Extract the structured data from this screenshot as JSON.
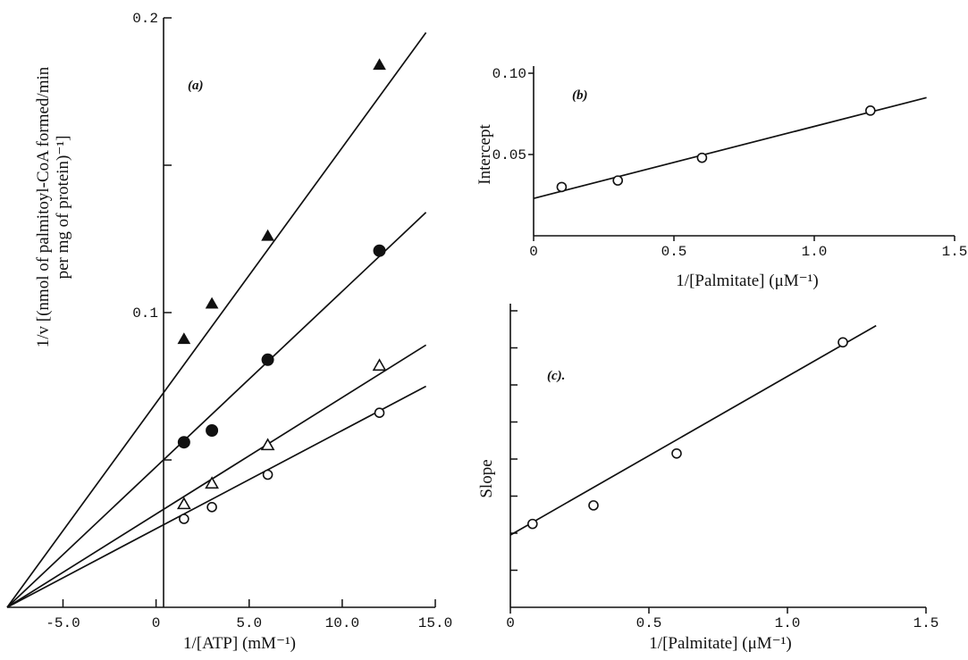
{
  "chart_data": [
    {
      "panel": "(a)",
      "type": "scatter",
      "xlabel": "1/[ATP] (mM⁻¹)",
      "ylabel_line1": "1/v [(nmol of palmitoyl-CoA formed/min",
      "ylabel_line2": "per mg of protein)⁻¹]",
      "xlim": [
        -8.0,
        15.0
      ],
      "ylim": [
        0.0,
        0.2
      ],
      "x_ticks": [
        -5.0,
        0,
        5.0,
        10.0,
        15.0
      ],
      "x_tick_labels": [
        "-5.0",
        "0",
        "5.0",
        "10.0",
        "15.0"
      ],
      "y_ticks": [
        0.05,
        0.1,
        0.15,
        0.2
      ],
      "y_tick_labels": [
        "",
        "0.1",
        "",
        "0.2"
      ],
      "y_axis_at_x": 0,
      "grid": false,
      "series": [
        {
          "marker": "filled-triangle",
          "x": [
            1.5,
            3.0,
            6.0,
            12.0
          ],
          "y": [
            0.091,
            0.103,
            0.126,
            0.184
          ],
          "fit": {
            "x": [
              -8.0,
              14.5
            ],
            "y": [
              0.0,
              0.195
            ]
          }
        },
        {
          "marker": "filled-circle",
          "x": [
            1.5,
            3.0,
            6.0,
            12.0
          ],
          "y": [
            0.056,
            0.06,
            0.084,
            0.121
          ],
          "fit": {
            "x": [
              -8.0,
              14.5
            ],
            "y": [
              0.0,
              0.134
            ]
          }
        },
        {
          "marker": "open-triangle",
          "x": [
            1.5,
            3.0,
            6.0,
            12.0
          ],
          "y": [
            0.035,
            0.042,
            0.055,
            0.082
          ],
          "fit": {
            "x": [
              -8.0,
              14.5
            ],
            "y": [
              0.0,
              0.089
            ]
          }
        },
        {
          "marker": "open-circle",
          "x": [
            1.5,
            3.0,
            6.0,
            12.0
          ],
          "y": [
            0.03,
            0.034,
            0.045,
            0.066
          ],
          "fit": {
            "x": [
              -8.0,
              14.5
            ],
            "y": [
              0.0,
              0.075
            ]
          }
        }
      ]
    },
    {
      "panel": "(b)",
      "type": "scatter",
      "xlabel": "1/[Palmitate] (μM⁻¹)",
      "ylabel": "Intercept",
      "xlim": [
        0,
        1.5
      ],
      "ylim": [
        0.0,
        0.1
      ],
      "x_ticks": [
        0,
        0.5,
        1.0,
        1.5
      ],
      "x_tick_labels": [
        "0",
        "0.5",
        "1.0",
        "1.5"
      ],
      "y_ticks": [
        0.05,
        0.1
      ],
      "y_tick_labels": [
        "0.05",
        "0.10"
      ],
      "grid": false,
      "series": [
        {
          "marker": "open-circle",
          "x": [
            0.1,
            0.3,
            0.6,
            1.2
          ],
          "y": [
            0.03,
            0.034,
            0.048,
            0.077
          ],
          "fit": {
            "x": [
              0.0,
              1.4
            ],
            "y": [
              0.023,
              0.085
            ]
          }
        }
      ]
    },
    {
      "panel": "(c).",
      "type": "scatter",
      "xlabel": "1/[Palmitate] (μM⁻¹)",
      "ylabel": "Slope",
      "xlim": [
        0,
        1.5
      ],
      "ylim": [
        0,
        8
      ],
      "y_units": "tick divisions (no printed values)",
      "x_ticks": [
        0,
        0.5,
        1.0,
        1.5
      ],
      "x_tick_labels": [
        "0",
        "0.5",
        "1.0",
        "1.5"
      ],
      "y_ticks": [
        1,
        2,
        3,
        4,
        5,
        6,
        7,
        8
      ],
      "y_tick_labels": [
        "",
        "",
        "",
        "",
        "",
        "",
        "",
        ""
      ],
      "grid": false,
      "series": [
        {
          "marker": "open-circle",
          "x": [
            0.08,
            0.3,
            0.6,
            1.2
          ],
          "y": [
            2.25,
            2.75,
            4.15,
            7.15
          ],
          "fit": {
            "x": [
              0.0,
              1.32
            ],
            "y": [
              1.95,
              7.6
            ]
          }
        }
      ]
    }
  ]
}
